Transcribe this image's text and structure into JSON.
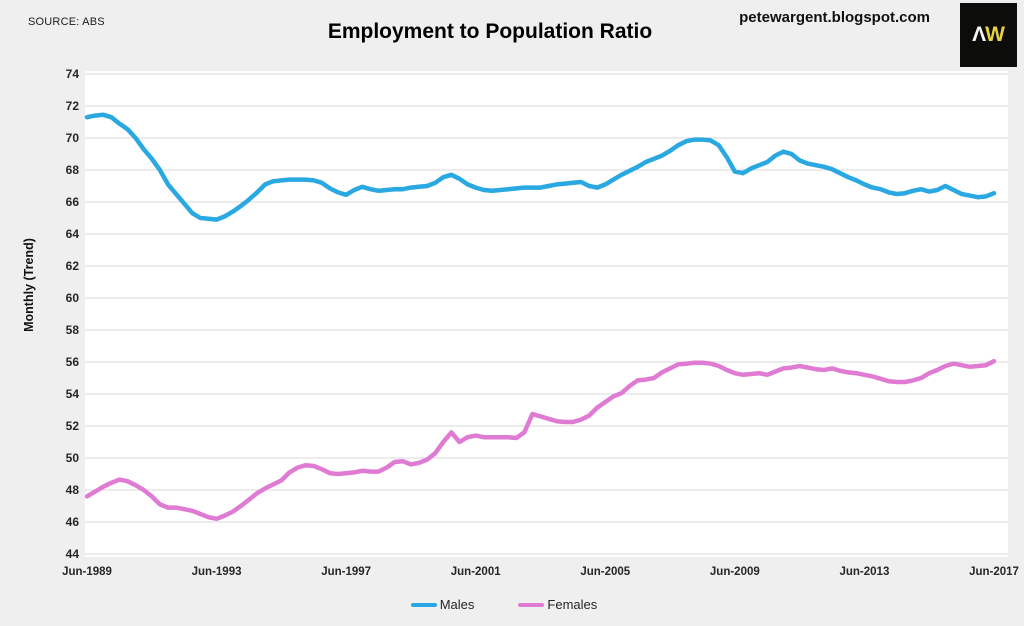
{
  "header": {
    "source": "SOURCE: ABS",
    "title": "Employment to Population Ratio",
    "site": "petewargent.blogspot.com",
    "logo": {
      "char1": "Λ",
      "char2": "W",
      "bg": "#0c0c0a",
      "color1": "#f5f5f5",
      "color2": "#e6d23f"
    }
  },
  "legend": {
    "items": [
      "Males",
      "Females"
    ]
  },
  "chart_data": {
    "type": "line",
    "title": "Employment to Population Ratio",
    "xlabel": "",
    "ylabel": "Monthly (Trend)",
    "ylim": [
      44,
      74
    ],
    "ytick_step": 2,
    "grid": "horizontal-only",
    "grid_color": "#d9d9d9",
    "plot_bg": "#ffffff",
    "page_bg": "#efefef",
    "legend_position": "bottom-center",
    "x_start": "Jun-1989",
    "x_end": "Jun-2017",
    "interval_months": 3,
    "total_months": 336,
    "x_ticks": [
      {
        "label": "Jun-1989",
        "month": 0
      },
      {
        "label": "Jun-1993",
        "month": 48
      },
      {
        "label": "Jun-1997",
        "month": 96
      },
      {
        "label": "Jun-2001",
        "month": 144
      },
      {
        "label": "Jun-2005",
        "month": 192
      },
      {
        "label": "Jun-2009",
        "month": 240
      },
      {
        "label": "Jun-2013",
        "month": 288
      },
      {
        "label": "Jun-2017",
        "month": 336
      }
    ],
    "series": [
      {
        "name": "Males",
        "color": "#29A8E1",
        "values": [
          71.3,
          71.4,
          71.45,
          71.3,
          70.9,
          70.55,
          70.0,
          69.3,
          68.7,
          68.0,
          67.1,
          66.5,
          65.9,
          65.3,
          65.0,
          64.95,
          64.9,
          65.1,
          65.4,
          65.75,
          66.15,
          66.6,
          67.1,
          67.3,
          67.35,
          67.4,
          67.4,
          67.4,
          67.35,
          67.2,
          66.85,
          66.6,
          66.45,
          66.75,
          66.95,
          66.8,
          66.7,
          66.75,
          66.8,
          66.8,
          66.9,
          66.95,
          67.0,
          67.2,
          67.55,
          67.7,
          67.45,
          67.1,
          66.9,
          66.75,
          66.7,
          66.75,
          66.8,
          66.85,
          66.9,
          66.9,
          66.9,
          67.0,
          67.1,
          67.15,
          67.2,
          67.25,
          67.0,
          66.9,
          67.1,
          67.4,
          67.7,
          67.95,
          68.2,
          68.5,
          68.7,
          68.9,
          69.2,
          69.55,
          69.8,
          69.9,
          69.9,
          69.85,
          69.55,
          68.8,
          67.9,
          67.8,
          68.1,
          68.3,
          68.5,
          68.9,
          69.15,
          69.0,
          68.6,
          68.4,
          68.3,
          68.2,
          68.05,
          67.8,
          67.55,
          67.35,
          67.1,
          66.9,
          66.8,
          66.6,
          66.5,
          66.55,
          66.7,
          66.8,
          66.65,
          66.75,
          67.0,
          66.75,
          66.5,
          66.4,
          66.3,
          66.35,
          66.55
        ]
      },
      {
        "name": "Females",
        "color": "#E07BD3",
        "values": [
          47.6,
          47.9,
          48.2,
          48.45,
          48.65,
          48.55,
          48.3,
          48.0,
          47.6,
          47.1,
          46.9,
          46.9,
          46.8,
          46.7,
          46.5,
          46.3,
          46.2,
          46.4,
          46.65,
          47.0,
          47.4,
          47.8,
          48.1,
          48.35,
          48.6,
          49.1,
          49.4,
          49.55,
          49.5,
          49.3,
          49.05,
          49.0,
          49.05,
          49.1,
          49.2,
          49.15,
          49.15,
          49.4,
          49.75,
          49.8,
          49.6,
          49.7,
          49.9,
          50.3,
          51.0,
          51.6,
          51.0,
          51.3,
          51.4,
          51.3,
          51.3,
          51.3,
          51.3,
          51.25,
          51.6,
          52.75,
          52.6,
          52.45,
          52.3,
          52.25,
          52.25,
          52.4,
          52.65,
          53.15,
          53.5,
          53.85,
          54.05,
          54.5,
          54.85,
          54.9,
          55.0,
          55.35,
          55.6,
          55.85,
          55.9,
          55.95,
          55.95,
          55.9,
          55.75,
          55.5,
          55.3,
          55.2,
          55.25,
          55.3,
          55.2,
          55.4,
          55.6,
          55.65,
          55.75,
          55.65,
          55.55,
          55.5,
          55.6,
          55.45,
          55.35,
          55.3,
          55.2,
          55.1,
          54.95,
          54.8,
          54.75,
          54.75,
          54.85,
          55.0,
          55.3,
          55.5,
          55.75,
          55.9,
          55.8,
          55.7,
          55.75,
          55.8,
          56.05
        ]
      }
    ]
  }
}
